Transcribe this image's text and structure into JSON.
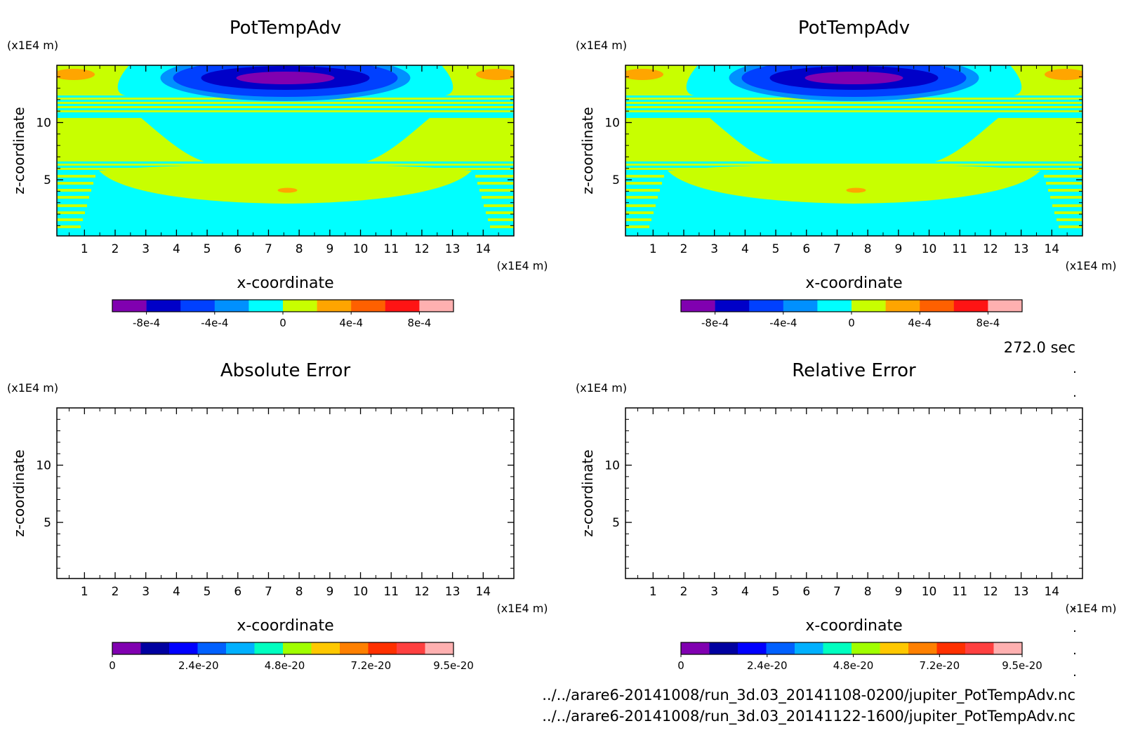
{
  "figure": {
    "time_label": "272.0 sec",
    "file_paths": [
      "../../arare6-20141008/run_3d.03_20141108-0200/jupiter_PotTempAdv.nc",
      "../../arare6-20141008/run_3d.03_20141122-1600/jupiter_PotTempAdv.nc"
    ],
    "dots": [
      ".",
      ".",
      ".",
      ".",
      ".",
      "."
    ]
  },
  "colors": {
    "field_levels": [
      "#8000b0",
      "#0000c8",
      "#0040ff",
      "#0090ff",
      "#00ffff",
      "#c8ff00",
      "#ffa500",
      "#ff6000",
      "#ff1414",
      "#ffb0b0"
    ],
    "error_levels": [
      "#8000b0",
      "#0000a0",
      "#0000ff",
      "#0060ff",
      "#00b0ff",
      "#00ffc0",
      "#a0ff00",
      "#ffc800",
      "#ff8000",
      "#ff3000",
      "#ff4040",
      "#ffb0b0"
    ]
  },
  "chart_data": [
    {
      "id": "potential-temperature-advection-1",
      "type": "heatmap",
      "title": "PotTempAdv",
      "xlabel": "x-coordinate",
      "ylabel": "z-coordinate",
      "xunit": "(x1E4 m)",
      "yunit": "(x1E4 m)",
      "x_ticks": [
        "1",
        "2",
        "3",
        "4",
        "5",
        "6",
        "7",
        "8",
        "9",
        "10",
        "11",
        "12",
        "13",
        "14"
      ],
      "y_ticks": [
        "5",
        "10"
      ],
      "xlim": [
        0.1,
        15.0
      ],
      "ylim": [
        0.1,
        15.0
      ],
      "colorbar_ticks": [
        "-8e-4",
        "-4e-4",
        "0",
        "4e-4",
        "8e-4"
      ],
      "colorbar_range": [
        -0.001,
        0.001
      ]
    },
    {
      "id": "potential-temperature-advection-2",
      "type": "heatmap",
      "title": "PotTempAdv",
      "xlabel": "x-coordinate",
      "ylabel": "z-coordinate",
      "xunit": "(x1E4 m)",
      "yunit": "(x1E4 m)",
      "x_ticks": [
        "1",
        "2",
        "3",
        "4",
        "5",
        "6",
        "7",
        "8",
        "9",
        "10",
        "11",
        "12",
        "13",
        "14"
      ],
      "y_ticks": [
        "5",
        "10"
      ],
      "xlim": [
        0.1,
        15.0
      ],
      "ylim": [
        0.1,
        15.0
      ],
      "colorbar_ticks": [
        "-8e-4",
        "-4e-4",
        "0",
        "4e-4",
        "8e-4"
      ],
      "colorbar_range": [
        -0.001,
        0.001
      ]
    },
    {
      "id": "absolute-error",
      "type": "heatmap",
      "title": "Absolute Error",
      "xlabel": "x-coordinate",
      "ylabel": "z-coordinate",
      "xunit": "(x1E4 m)",
      "yunit": "(x1E4 m)",
      "x_ticks": [
        "1",
        "2",
        "3",
        "4",
        "5",
        "6",
        "7",
        "8",
        "9",
        "10",
        "11",
        "12",
        "13",
        "14"
      ],
      "y_ticks": [
        "5",
        "10"
      ],
      "xlim": [
        0.1,
        15.0
      ],
      "ylim": [
        0.1,
        15.0
      ],
      "colorbar_ticks": [
        "0",
        "2.4e-20",
        "4.8e-20",
        "7.2e-20",
        "9.5e-20"
      ],
      "colorbar_range": [
        0,
        9.5e-20
      ]
    },
    {
      "id": "relative-error",
      "type": "heatmap",
      "title": "Relative Error",
      "xlabel": "x-coordinate",
      "ylabel": "z-coordinate",
      "xunit": "(x1E4 m)",
      "yunit": "(x1E4 m)",
      "x_ticks": [
        "1",
        "2",
        "3",
        "4",
        "5",
        "6",
        "7",
        "8",
        "9",
        "10",
        "11",
        "12",
        "13",
        "14"
      ],
      "y_ticks": [
        "5",
        "10"
      ],
      "xlim": [
        0.1,
        15.0
      ],
      "ylim": [
        0.1,
        15.0
      ],
      "colorbar_ticks": [
        "0",
        "2.4e-20",
        "4.8e-20",
        "7.2e-20",
        "9.5e-20"
      ],
      "colorbar_range": [
        0,
        9.5e-20
      ]
    }
  ]
}
